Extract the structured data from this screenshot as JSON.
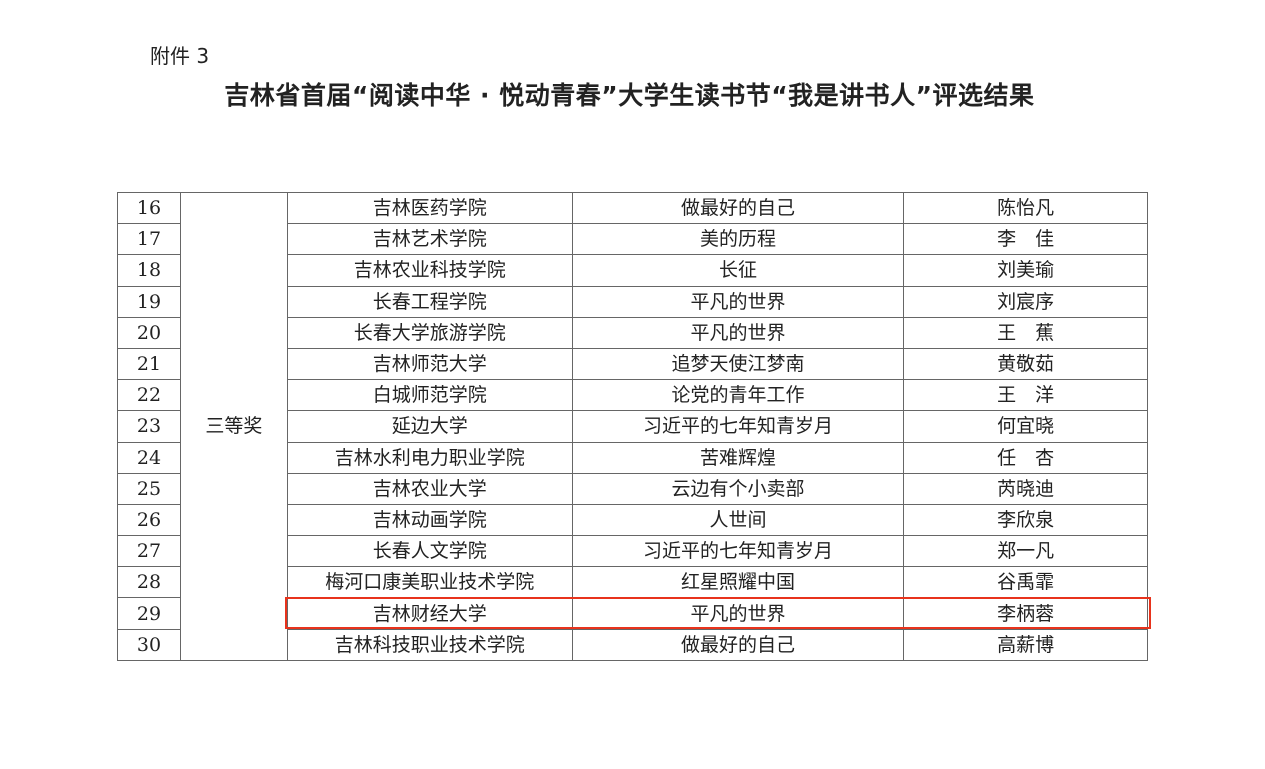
{
  "attachment_label": "附件 3",
  "title": "吉林省首届“阅读中华 · 悦动青春”大学生读书节“我是讲书人”评选结果",
  "award_level": "三等奖",
  "highlight_color": "#e8331c",
  "rows": [
    {
      "no": "16",
      "school": "吉林医药学院",
      "book": "做最好的自己",
      "name": "陈怡凡"
    },
    {
      "no": "17",
      "school": "吉林艺术学院",
      "book": "美的历程",
      "name": "李　佳"
    },
    {
      "no": "18",
      "school": "吉林农业科技学院",
      "book": "长征",
      "name": "刘美瑜"
    },
    {
      "no": "19",
      "school": "长春工程学院",
      "book": "平凡的世界",
      "name": "刘宸序"
    },
    {
      "no": "20",
      "school": "长春大学旅游学院",
      "book": "平凡的世界",
      "name": "王　蕉"
    },
    {
      "no": "21",
      "school": "吉林师范大学",
      "book": "追梦天使江梦南",
      "name": "黄敬茹"
    },
    {
      "no": "22",
      "school": "白城师范学院",
      "book": "论党的青年工作",
      "name": "王　洋"
    },
    {
      "no": "23",
      "school": "延边大学",
      "book": "习近平的七年知青岁月",
      "name": "何宜晓"
    },
    {
      "no": "24",
      "school": "吉林水利电力职业学院",
      "book": "苦难辉煌",
      "name": "任　杏"
    },
    {
      "no": "25",
      "school": "吉林农业大学",
      "book": "云边有个小卖部",
      "name": "芮晓迪"
    },
    {
      "no": "26",
      "school": "吉林动画学院",
      "book": "人世间",
      "name": "李欣泉"
    },
    {
      "no": "27",
      "school": "长春人文学院",
      "book": "习近平的七年知青岁月",
      "name": "郑一凡"
    },
    {
      "no": "28",
      "school": "梅河口康美职业技术学院",
      "book": "红星照耀中国",
      "name": "谷禹霏"
    },
    {
      "no": "29",
      "school": "吉林财经大学",
      "book": "平凡的世界",
      "name": "李柄蓉",
      "highlighted": true
    },
    {
      "no": "30",
      "school": "吉林科技职业技术学院",
      "book": "做最好的自己",
      "name": "高薪博"
    }
  ]
}
